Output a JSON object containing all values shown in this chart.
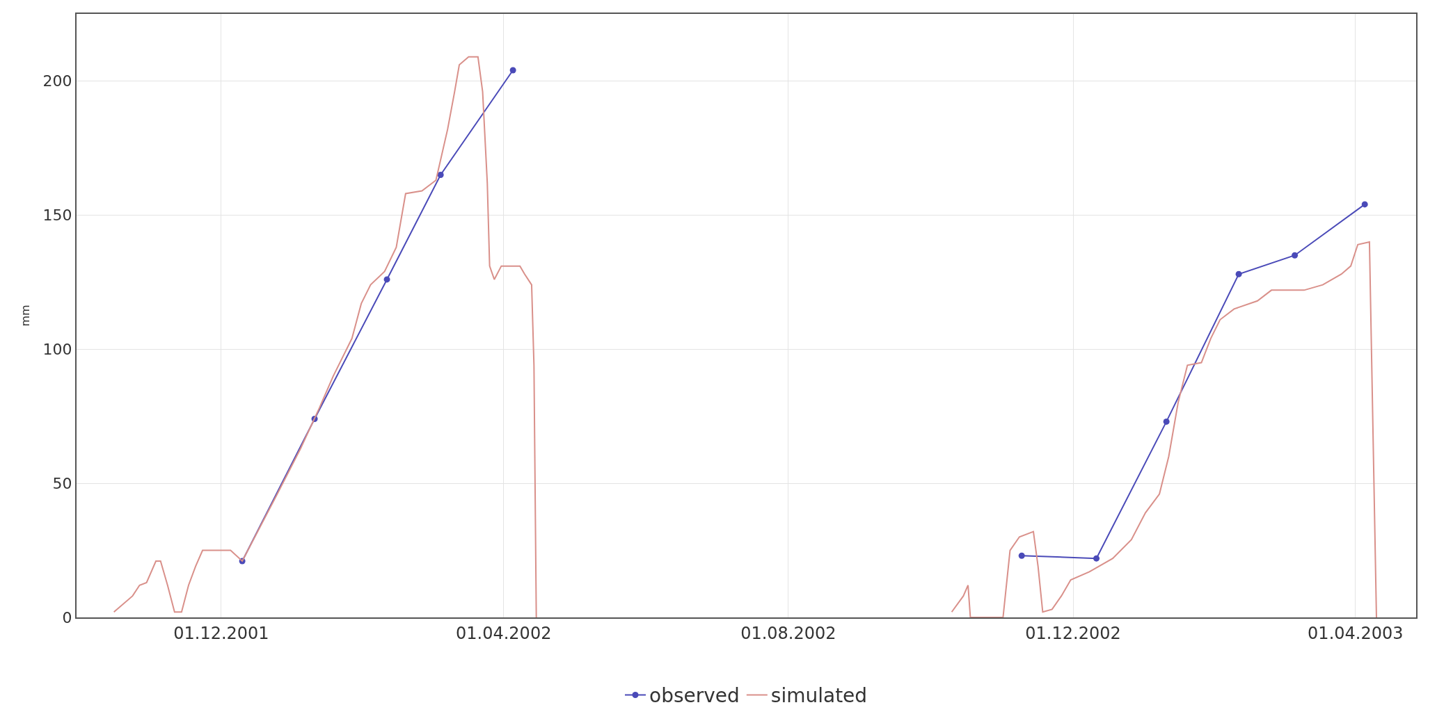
{
  "chart_data": {
    "type": "line",
    "ylabel": "mm",
    "xlim": [
      "2001-09-30",
      "2003-04-27"
    ],
    "ylim": [
      0,
      225
    ],
    "xticks": [
      {
        "value": "2001-12-01",
        "label": "01.12.2001"
      },
      {
        "value": "2002-04-01",
        "label": "01.04.2002"
      },
      {
        "value": "2002-08-01",
        "label": "01.08.2002"
      },
      {
        "value": "2002-12-01",
        "label": "01.12.2002"
      },
      {
        "value": "2003-04-01",
        "label": "01.04.2003"
      }
    ],
    "yticks": [
      0,
      50,
      100,
      150,
      200
    ],
    "grid": true,
    "legend": "bottom",
    "series": [
      {
        "name": "observed",
        "color": "#4a4ab8",
        "marker": "circle",
        "x": [
          "2001-12-10",
          "2002-01-10",
          "2002-02-10",
          "2002-03-05",
          "2002-04-05",
          null,
          "2002-11-09",
          "2002-12-11",
          "2003-01-10",
          "2003-02-10",
          "2003-03-06",
          "2003-04-05"
        ],
        "values": [
          21,
          74,
          126,
          165,
          204,
          null,
          23,
          22,
          73,
          128,
          135,
          154
        ]
      },
      {
        "name": "simulated",
        "color": "#d9908a",
        "marker": "none",
        "x": [
          "2001-10-16",
          "2001-10-24",
          "2001-10-27",
          "2001-10-30",
          "2001-11-03",
          "2001-11-05",
          "2001-11-08",
          "2001-11-11",
          "2001-11-14",
          "2001-11-17",
          "2001-11-20",
          "2001-11-23",
          "2001-12-05",
          "2001-12-10",
          "2001-12-25",
          "2002-01-04",
          "2002-01-12",
          "2002-01-18",
          "2002-01-26",
          "2002-01-30",
          "2002-02-03",
          "2002-02-09",
          "2002-02-14",
          "2002-02-18",
          "2002-02-25",
          "2002-03-03",
          "2002-03-08",
          "2002-03-11",
          "2002-03-13",
          "2002-03-17",
          "2002-03-21",
          "2002-03-23",
          "2002-03-25",
          "2002-03-26",
          "2002-03-28",
          "2002-03-31",
          "2002-04-08",
          "2002-04-10",
          "2002-04-13",
          "2002-04-14",
          "2002-04-15",
          "2002-07-01",
          "2002-10-10",
          "2002-10-15",
          "2002-10-17",
          "2002-10-18",
          "2002-11-01",
          "2002-11-04",
          "2002-11-08",
          "2002-11-14",
          "2002-11-16",
          "2002-11-18",
          "2002-11-22",
          "2002-11-26",
          "2002-11-30",
          "2002-12-08",
          "2002-12-18",
          "2002-12-26",
          "2003-01-01",
          "2003-01-07",
          "2003-01-11",
          "2003-01-15",
          "2003-01-19",
          "2003-01-25",
          "2003-01-29",
          "2003-02-02",
          "2003-02-08",
          "2003-02-18",
          "2003-02-24",
          "2003-03-10",
          "2003-03-18",
          "2003-03-26",
          "2003-03-30",
          "2003-04-02",
          "2003-04-07",
          "2003-04-10"
        ],
        "values": [
          2,
          8,
          12,
          13,
          21,
          21,
          12,
          2,
          2,
          12,
          19,
          25,
          25,
          21,
          46,
          63,
          78,
          90,
          104,
          117,
          124,
          129,
          138,
          158,
          159,
          163,
          182,
          196,
          206,
          209,
          209,
          196,
          162,
          131,
          126,
          131,
          131,
          128,
          124,
          94,
          0,
          null,
          2,
          8,
          12,
          0,
          0,
          25,
          30,
          32,
          19,
          2,
          3,
          8,
          14,
          17,
          22,
          29,
          39,
          46,
          60,
          80,
          94,
          95,
          104,
          111,
          115,
          118,
          122,
          122,
          124,
          128,
          131,
          139,
          140,
          0
        ]
      }
    ]
  }
}
